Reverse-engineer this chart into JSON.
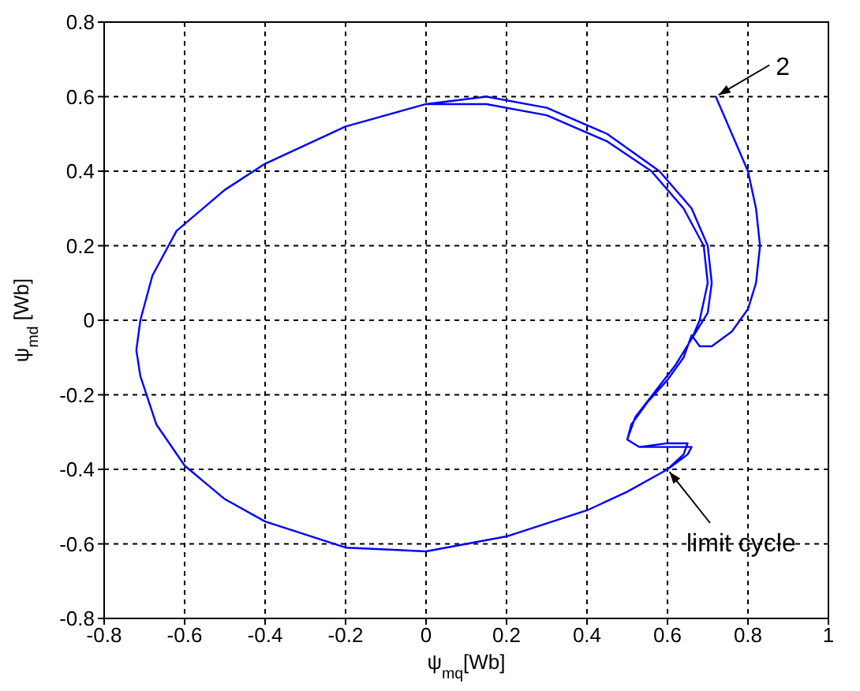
{
  "chart_data": {
    "type": "line",
    "xlabel": "ψ$_{mq}$[Wb]",
    "ylabel": "ψ$_{md}$ [Wb]",
    "xlim": [
      -0.8,
      1
    ],
    "xticks": [
      -0.8,
      -0.6,
      -0.4,
      -0.2,
      0,
      0.2,
      0.4,
      0.6,
      0.8,
      1
    ],
    "ylim": [
      -0.8,
      0.8
    ],
    "yticks": [
      -0.8,
      -0.6,
      -0.4,
      -0.2,
      0,
      0.2,
      0.4,
      0.6,
      0.8
    ],
    "grid": true,
    "marker": "none",
    "line_style": "solid",
    "series": [
      {
        "color": "#0000ff",
        "x": [
          0.72,
          0.76,
          0.8,
          0.82,
          0.83,
          0.82,
          0.8,
          0.76,
          0.71,
          0.68,
          0.66,
          0.64,
          0.6,
          0.55,
          0.51,
          0.5,
          0.53,
          0.6,
          0.66,
          0.65,
          0.6,
          0.5,
          0.4,
          0.2,
          0,
          -0.2,
          -0.4,
          -0.5,
          -0.6,
          -0.67,
          -0.71,
          -0.72,
          -0.71,
          -0.68,
          -0.62,
          -0.5,
          -0.4,
          -0.2,
          0,
          0.15,
          0.3,
          0.45,
          0.58,
          0.66,
          0.7,
          0.71,
          0.7,
          0.66,
          0.62,
          0.57,
          0.52,
          0.5,
          0.53,
          0.6,
          0.65,
          0.64,
          0.6,
          0.5,
          0.4,
          0.2,
          0,
          -0.2,
          -0.4,
          -0.5,
          -0.6,
          -0.67,
          -0.71,
          -0.72,
          -0.71,
          -0.68,
          -0.62,
          -0.5,
          -0.4,
          -0.2,
          0,
          0.15,
          0.3,
          0.45,
          0.56,
          0.64,
          0.69,
          0.7,
          0.68,
          0.66
        ],
        "values": [
          0.6,
          0.5,
          0.4,
          0.3,
          0.2,
          0.1,
          0.03,
          -0.03,
          -0.07,
          -0.07,
          -0.04,
          -0.1,
          -0.16,
          -0.22,
          -0.28,
          -0.32,
          -0.34,
          -0.34,
          -0.34,
          -0.36,
          -0.4,
          -0.46,
          -0.51,
          -0.58,
          -0.62,
          -0.61,
          -0.54,
          -0.48,
          -0.39,
          -0.28,
          -0.15,
          -0.08,
          0,
          0.12,
          0.24,
          0.35,
          0.42,
          0.52,
          0.58,
          0.6,
          0.57,
          0.5,
          0.4,
          0.3,
          0.2,
          0.1,
          0.02,
          -0.05,
          -0.12,
          -0.19,
          -0.26,
          -0.32,
          -0.34,
          -0.33,
          -0.33,
          -0.36,
          -0.4,
          -0.46,
          -0.51,
          -0.58,
          -0.62,
          -0.61,
          -0.54,
          -0.48,
          -0.39,
          -0.28,
          -0.15,
          -0.08,
          0,
          0.12,
          0.24,
          0.35,
          0.42,
          0.52,
          0.58,
          0.58,
          0.55,
          0.48,
          0.4,
          0.3,
          0.2,
          0.1,
          0,
          -0.05
        ]
      }
    ],
    "annotations": [
      {
        "text": "2",
        "x": 0.72,
        "y": 0.6
      },
      {
        "text": "limit cycle",
        "x": 0.6,
        "y": -0.4
      }
    ]
  }
}
